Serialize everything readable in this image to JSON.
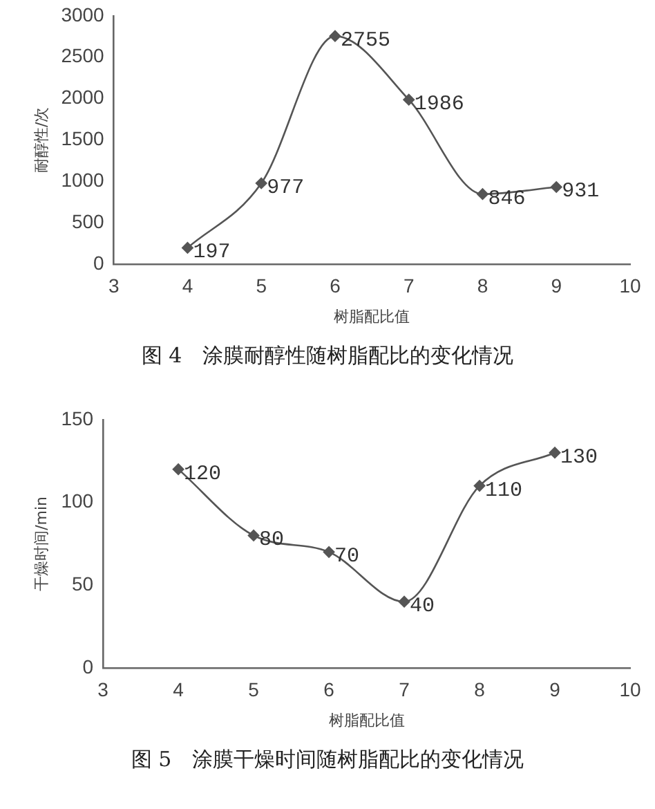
{
  "chart_data": [
    {
      "type": "line",
      "x": [
        4,
        5,
        6,
        7,
        8,
        9
      ],
      "values": [
        197,
        977,
        2755,
        1986,
        846,
        931
      ],
      "color": "#555555",
      "xlabel": "树脂配比值",
      "ylabel": "耐醇性/次",
      "xlim": [
        3,
        10
      ],
      "xticks": [
        3,
        4,
        5,
        6,
        7,
        8,
        9,
        10
      ],
      "ylim": [
        0,
        3000
      ],
      "yticks": [
        0,
        500,
        1000,
        1500,
        2000,
        2500,
        3000
      ],
      "grid": false,
      "legend": false,
      "marker": "diamond",
      "line_style": "solid",
      "data_labels": true,
      "annotations": [
        "图 4　涂膜耐醇性随树脂配比的变化情况"
      ]
    },
    {
      "type": "line",
      "x": [
        4,
        5,
        6,
        7,
        8,
        9
      ],
      "values": [
        120,
        80,
        70,
        40,
        110,
        130
      ],
      "color": "#555555",
      "xlabel": "树脂配比值",
      "ylabel": "干燥时间/min",
      "xlim": [
        3,
        10
      ],
      "xticks": [
        3,
        4,
        5,
        6,
        7,
        8,
        9,
        10
      ],
      "ylim": [
        0,
        150
      ],
      "yticks": [
        0,
        50,
        100,
        150
      ],
      "grid": false,
      "legend": false,
      "marker": "diamond",
      "line_style": "solid",
      "data_labels": true,
      "annotations": [
        "图 5　涂膜干燥时间随树脂配比的变化情况"
      ]
    }
  ]
}
